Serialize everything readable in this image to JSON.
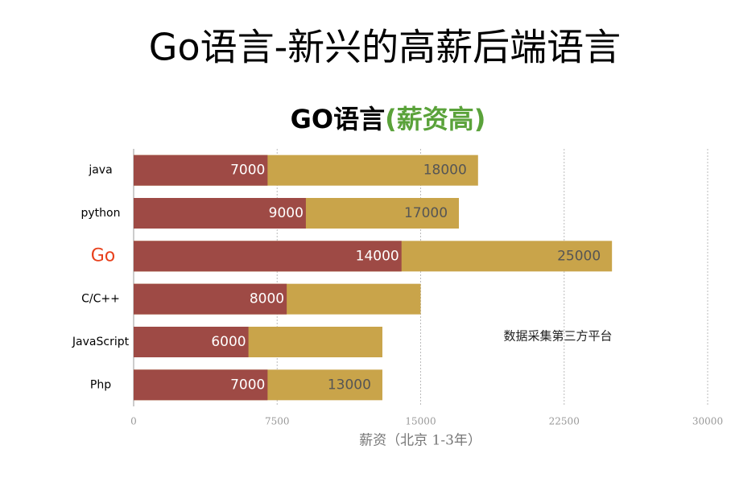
{
  "page_title": "Go语言-新兴的高薪后端语言",
  "chart_data": {
    "type": "range-bar",
    "title": [
      "GO语言",
      "(薪资高)"
    ],
    "title_colors": [
      "#000000",
      "#5aa23a"
    ],
    "categories": [
      "java",
      "python",
      "Go",
      "C/C++",
      "JavaScript",
      "Php"
    ],
    "category_colors": [
      "#000000",
      "#000000",
      "#e8401c",
      "#000000",
      "#000000",
      "#000000"
    ],
    "series": [
      {
        "color": "#c9a44a",
        "label_color": "#555555",
        "values": [
          18000,
          17000,
          25000,
          15000,
          13000,
          13000
        ],
        "value_labels": [
          "18000",
          "17000",
          "25000",
          null,
          null,
          "13000"
        ]
      },
      {
        "color": "#9e4a45",
        "label_color": "#ffffff",
        "values": [
          7000,
          9000,
          14000,
          8000,
          6000,
          7000
        ]
      }
    ],
    "xlabel": "薪资（北京 1-3年）",
    "annotation": "数据采集第三方平台",
    "xlim": [
      0,
      30000
    ],
    "xticks": [
      0,
      7500,
      15000,
      22500,
      30000
    ],
    "grid": true
  }
}
